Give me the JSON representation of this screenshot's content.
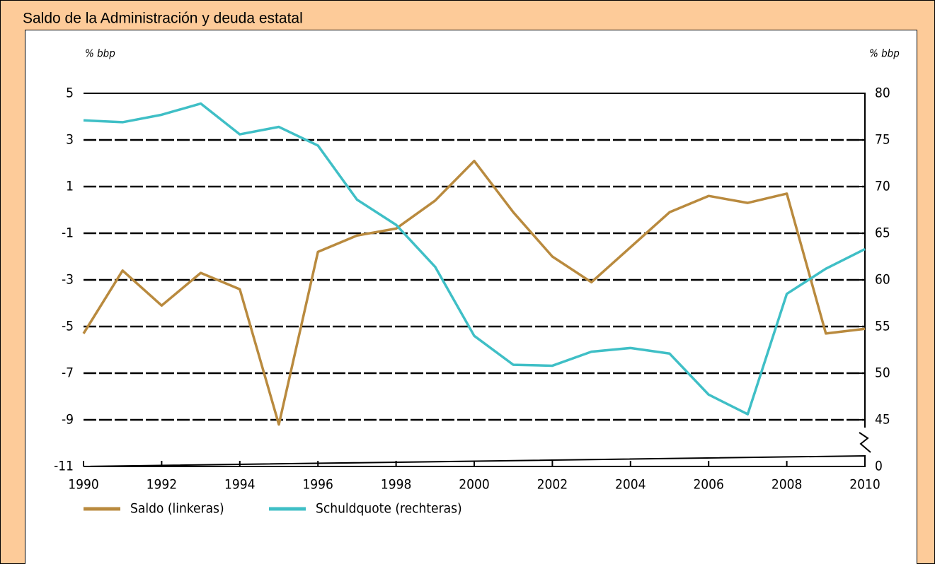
{
  "chart_data": {
    "type": "line",
    "title": "Saldo de la Administración y deuda estatal",
    "y_label": "% bbp",
    "y2_label": "% bbp",
    "x": [
      1990,
      1991,
      1992,
      1993,
      1994,
      1995,
      1996,
      1997,
      1998,
      1999,
      2000,
      2001,
      2002,
      2003,
      2004,
      2005,
      2006,
      2007,
      2008,
      2009,
      2010
    ],
    "xlim": [
      1990,
      2010
    ],
    "xticks": [
      1990,
      1992,
      1994,
      1996,
      1998,
      2000,
      2002,
      2004,
      2006,
      2008,
      2010
    ],
    "ylim": [
      -11,
      5
    ],
    "yticks": [
      5,
      3,
      1,
      -1,
      -3,
      -5,
      -7,
      -9,
      -11
    ],
    "y2lim": [
      0,
      80
    ],
    "y2ticks": [
      0,
      45,
      50,
      55,
      60,
      65,
      70,
      75,
      80
    ],
    "y2_axis_break": true,
    "grid": true,
    "series": [
      {
        "name": "Saldo (linkeras)",
        "color": "#b98a3e",
        "values": [
          -5.3,
          -2.6,
          -4.1,
          -2.7,
          -3.4,
          -9.2,
          -1.8,
          -1.1,
          -0.8,
          0.4,
          2.1,
          -0.1,
          -2.0,
          -3.1,
          -1.6,
          -0.1,
          0.6,
          0.3,
          0.7,
          -5.3,
          -5.1
        ]
      },
      {
        "name": "Schuldquote (rechteras)",
        "color": "#3fbfc6",
        "axis": "y2",
        "values": [
          77.1,
          76.9,
          77.7,
          78.9,
          75.6,
          76.4,
          74.4,
          68.6,
          65.9,
          61.4,
          54.0,
          50.9,
          50.8,
          52.3,
          52.7,
          52.1,
          47.7,
          45.6,
          58.5,
          61.2,
          63.3
        ]
      }
    ]
  }
}
